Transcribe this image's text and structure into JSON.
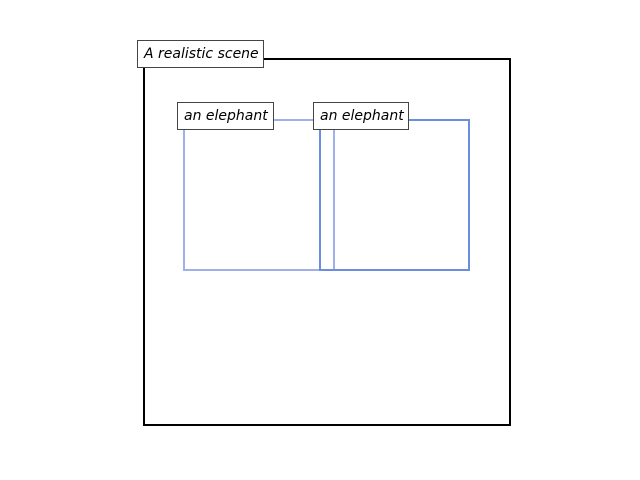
{
  "scene": {
    "label": "A realistic scene",
    "border_color": "#000000"
  },
  "objects": [
    {
      "label": "an elephant",
      "color": "#9fb0ea"
    },
    {
      "label": "an elephant",
      "color": "#6a8ddd"
    }
  ]
}
